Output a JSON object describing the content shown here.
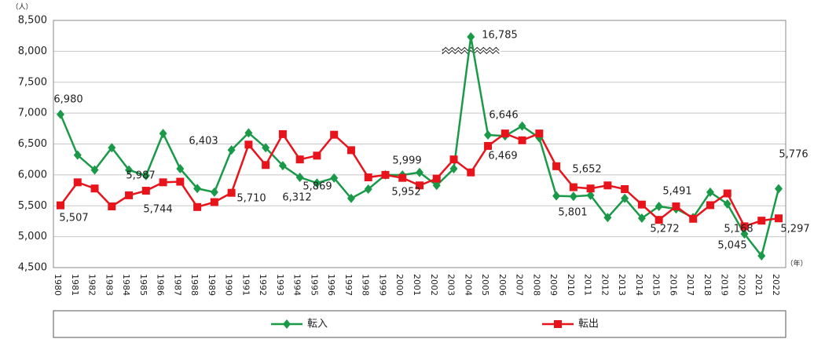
{
  "chart_data": {
    "type": "line",
    "y_unit": "（人）",
    "x_unit": "（年）",
    "categories": [
      "1980",
      "1981",
      "1982",
      "1983",
      "1984",
      "1985",
      "1986",
      "1987",
      "1988",
      "1989",
      "1990",
      "1991",
      "1992",
      "1993",
      "1994",
      "1995",
      "1996",
      "1997",
      "1998",
      "1999",
      "2000",
      "2001",
      "2002",
      "2003",
      "2004",
      "2005",
      "2006",
      "2007",
      "2008",
      "2009",
      "2010",
      "2011",
      "2012",
      "2013",
      "2014",
      "2015",
      "2016",
      "2017",
      "2018",
      "2019",
      "2020",
      "2021",
      "2022"
    ],
    "series": [
      {
        "name": "転入",
        "color": "#1a9a48",
        "marker": "diamond",
        "values": [
          6980,
          6320,
          6080,
          6440,
          6080,
          5987,
          6670,
          6100,
          5780,
          5720,
          6403,
          6680,
          6440,
          6150,
          5960,
          5869,
          5950,
          5620,
          5770,
          6000,
          5999,
          6040,
          5830,
          6100,
          16785,
          6646,
          6630,
          6790,
          6600,
          5660,
          5652,
          5670,
          5310,
          5620,
          5300,
          5491,
          5450,
          5310,
          5720,
          5530,
          5045,
          4690,
          5776
        ],
        "value_labels": [
          "6,980",
          null,
          null,
          null,
          null,
          "5,987",
          null,
          null,
          null,
          null,
          "6,403",
          null,
          null,
          null,
          null,
          "5,869",
          null,
          null,
          null,
          null,
          "5,999",
          null,
          null,
          null,
          "16,785",
          "6,646",
          null,
          null,
          null,
          null,
          "5,652",
          null,
          null,
          null,
          null,
          "5,491",
          null,
          null,
          null,
          null,
          "5,045",
          null,
          "5,776"
        ]
      },
      {
        "name": "転出",
        "color": "#e8141c",
        "marker": "square",
        "values": [
          5507,
          5880,
          5780,
          5490,
          5670,
          5744,
          5880,
          5890,
          5480,
          5560,
          5710,
          6490,
          6160,
          6660,
          6250,
          6312,
          6650,
          6400,
          5960,
          6000,
          5952,
          5830,
          5940,
          6250,
          6040,
          6469,
          6670,
          6560,
          6670,
          6140,
          5801,
          5780,
          5830,
          5770,
          5520,
          5272,
          5490,
          5290,
          5510,
          5700,
          5168,
          5260,
          5297
        ],
        "value_labels": [
          "5,507",
          null,
          null,
          null,
          null,
          "5,744",
          null,
          null,
          null,
          null,
          "5,710",
          null,
          null,
          null,
          null,
          "6,312",
          null,
          null,
          null,
          null,
          "5,952",
          null,
          null,
          null,
          null,
          "6,469",
          null,
          null,
          null,
          null,
          "5,801",
          null,
          null,
          null,
          null,
          "5,272",
          null,
          null,
          null,
          null,
          "5,168",
          null,
          "5,297"
        ]
      }
    ],
    "ylim": [
      4500,
      8500
    ],
    "yticks": [
      {
        "value": 4500,
        "label": "4,500"
      },
      {
        "value": 5000,
        "label": "5,000"
      },
      {
        "value": 5500,
        "label": "5,500"
      },
      {
        "value": 6000,
        "label": "6,000"
      },
      {
        "value": 6500,
        "label": "6,500"
      },
      {
        "value": 7000,
        "label": "7,000"
      },
      {
        "value": 7500,
        "label": "7,500"
      },
      {
        "value": 8000,
        "label": "8,000"
      },
      {
        "value": 8500,
        "label": "8,500"
      }
    ],
    "grid": true,
    "legend": "bottom"
  }
}
